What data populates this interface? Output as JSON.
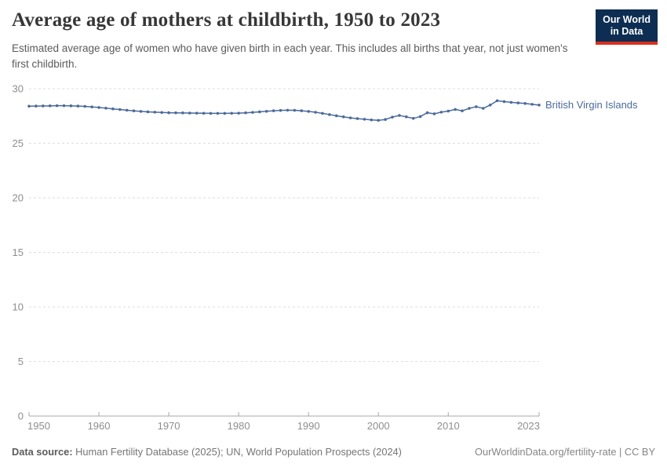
{
  "header": {
    "title": "Average age of mothers at childbirth, 1950 to 2023",
    "subtitle": "Estimated average age of women who have given birth in each year. This includes all births that year, not just women's first childbirth."
  },
  "logo": {
    "line1": "Our World",
    "line2": "in Data",
    "bg_color": "#0d2d52",
    "accent_color": "#d8301f"
  },
  "chart_data": {
    "type": "line",
    "title": "Average age of mothers at childbirth, 1950 to 2023",
    "xlabel": "",
    "ylabel": "",
    "xlim": [
      1950,
      2023
    ],
    "ylim": [
      0,
      30
    ],
    "y_ticks": [
      0,
      5,
      10,
      15,
      20,
      25,
      30
    ],
    "x_ticks": [
      1950,
      1960,
      1970,
      1980,
      1990,
      2000,
      2010,
      2023
    ],
    "grid": "horizontal-dashed",
    "legend_position": "end-of-line-label",
    "series": [
      {
        "name": "British Virgin Islands",
        "color": "#4c6a9c",
        "x": [
          1950,
          1951,
          1952,
          1953,
          1954,
          1955,
          1956,
          1957,
          1958,
          1959,
          1960,
          1961,
          1962,
          1963,
          1964,
          1965,
          1966,
          1967,
          1968,
          1969,
          1970,
          1971,
          1972,
          1973,
          1974,
          1975,
          1976,
          1977,
          1978,
          1979,
          1980,
          1981,
          1982,
          1983,
          1984,
          1985,
          1986,
          1987,
          1988,
          1989,
          1990,
          1991,
          1992,
          1993,
          1994,
          1995,
          1996,
          1997,
          1998,
          1999,
          2000,
          2001,
          2002,
          2003,
          2004,
          2005,
          2006,
          2007,
          2008,
          2009,
          2010,
          2011,
          2012,
          2013,
          2014,
          2015,
          2016,
          2017,
          2018,
          2019,
          2020,
          2021,
          2022,
          2023
        ],
        "values": [
          28.4,
          28.41,
          28.42,
          28.43,
          28.44,
          28.44,
          28.43,
          28.41,
          28.38,
          28.33,
          28.28,
          28.22,
          28.15,
          28.09,
          28.03,
          27.97,
          27.92,
          27.88,
          27.85,
          27.82,
          27.8,
          27.79,
          27.78,
          27.77,
          27.76,
          27.75,
          27.74,
          27.74,
          27.74,
          27.75,
          27.76,
          27.79,
          27.83,
          27.88,
          27.93,
          27.98,
          28.01,
          28.03,
          28.02,
          27.98,
          27.92,
          27.84,
          27.74,
          27.63,
          27.52,
          27.42,
          27.33,
          27.26,
          27.2,
          27.14,
          27.1,
          27.18,
          27.4,
          27.55,
          27.42,
          27.28,
          27.45,
          27.8,
          27.7,
          27.85,
          27.95,
          28.1,
          27.97,
          28.2,
          28.35,
          28.2,
          28.5,
          28.9,
          28.82,
          28.75,
          28.7,
          28.65,
          28.57,
          28.5
        ]
      }
    ],
    "style": {
      "gridline_color": "#dedede",
      "axis_color": "#a8a8a8",
      "tick_label_color": "#8e8e8e"
    }
  },
  "footer": {
    "datasource_label": "Data source:",
    "datasource_value": " Human Fertility Database (2025); UN, World Population Prospects (2024)",
    "rights": "OurWorldinData.org/fertility-rate | CC BY"
  }
}
